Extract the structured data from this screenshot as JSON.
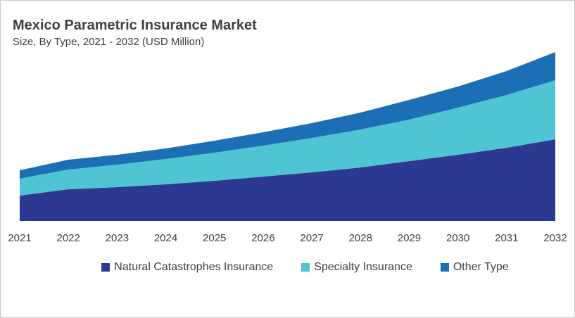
{
  "chart_data": {
    "type": "area",
    "stacked": true,
    "title": "Mexico Parametric Insurance Market",
    "subtitle": "Size, By Type, 2021 - 2032 (USD Million)",
    "x": [
      "2021",
      "2022",
      "2023",
      "2024",
      "2025",
      "2026",
      "2027",
      "2028",
      "2029",
      "2030",
      "2031",
      "2032"
    ],
    "series": [
      {
        "name": "Natural Catastrophes Insurance",
        "color": "#2b3990",
        "values": [
          36,
          45,
          48,
          52,
          57,
          63,
          69,
          76,
          85,
          94,
          104,
          116
        ]
      },
      {
        "name": "Specialty Insurance",
        "color": "#4fc5d3",
        "values": [
          24,
          28,
          32,
          36,
          40,
          44,
          49,
          54,
          59,
          67,
          75,
          84
        ]
      },
      {
        "name": "Other Type",
        "color": "#1c6fb5",
        "values": [
          12,
          14,
          14,
          15,
          17,
          19,
          21,
          24,
          28,
          30,
          34,
          40
        ]
      }
    ],
    "ylim": [
      0,
      240
    ],
    "y_axis_shown": false,
    "grid": false,
    "legend_position": "bottom"
  }
}
